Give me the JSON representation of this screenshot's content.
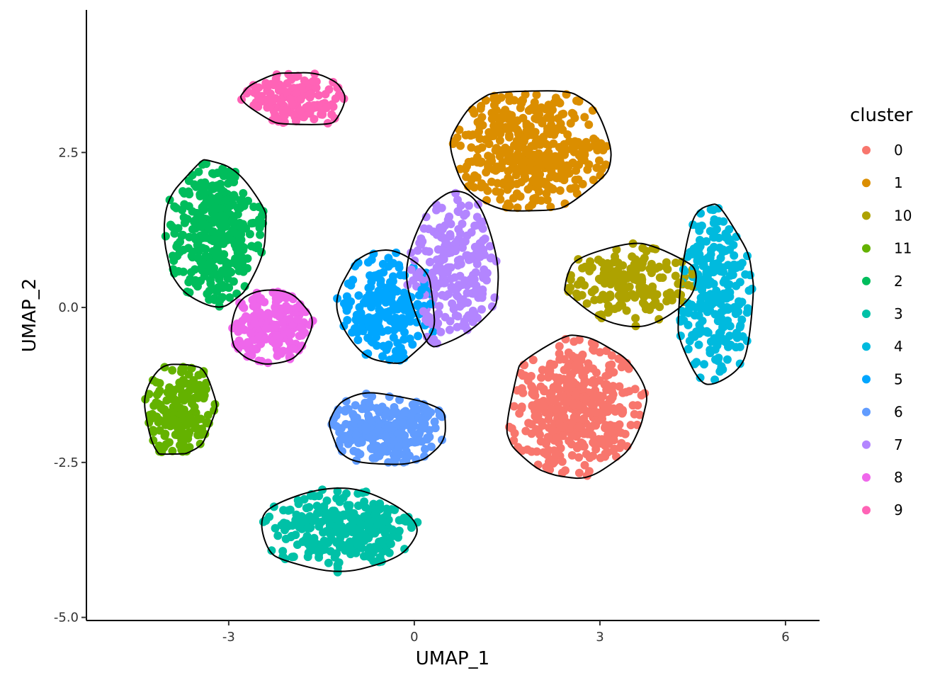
{
  "chart_data": {
    "type": "scatter",
    "title": "",
    "xlabel": "UMAP_1",
    "ylabel": "UMAP_2",
    "xlim": [
      -5.3,
      6.55
    ],
    "ylim": [
      -5.05,
      4.8
    ],
    "x_ticks": [
      -3,
      0,
      3,
      6
    ],
    "x_tick_labels": [
      "-3",
      "0",
      "3",
      "6"
    ],
    "y_ticks": [
      -5.0,
      -2.5,
      0.0,
      2.5
    ],
    "y_tick_labels": [
      "-5.0",
      "-2.5",
      "0.0",
      "2.5"
    ],
    "grid": false,
    "legend": {
      "title": "cluster",
      "placement": "right"
    },
    "series": [
      {
        "name": "0",
        "color": "#F8766D",
        "center": [
          2.6,
          -1.6
        ],
        "spread": [
          1.15,
          1.15
        ],
        "count": 420
      },
      {
        "name": "1",
        "color": "#DB8E00",
        "center": [
          1.9,
          2.55
        ],
        "spread": [
          1.3,
          1.0
        ],
        "count": 400
      },
      {
        "name": "10",
        "color": "#AEA200",
        "center": [
          3.5,
          0.35
        ],
        "spread": [
          1.1,
          0.7
        ],
        "count": 170
      },
      {
        "name": "11",
        "color": "#64B200",
        "center": [
          -3.8,
          -1.65
        ],
        "spread": [
          0.6,
          0.85
        ],
        "count": 180
      },
      {
        "name": "2",
        "color": "#00BD5C",
        "center": [
          -3.2,
          1.2
        ],
        "spread": [
          0.85,
          1.2
        ],
        "count": 330
      },
      {
        "name": "3",
        "color": "#00C1A7",
        "center": [
          -1.2,
          -3.6
        ],
        "spread": [
          1.3,
          0.7
        ],
        "count": 280
      },
      {
        "name": "4",
        "color": "#00BADE",
        "center": [
          4.85,
          0.2
        ],
        "spread": [
          0.65,
          1.45
        ],
        "count": 250
      },
      {
        "name": "5",
        "color": "#00A6FF",
        "center": [
          -0.45,
          0.0
        ],
        "spread": [
          0.85,
          0.9
        ],
        "count": 200
      },
      {
        "name": "6",
        "color": "#619CFF",
        "center": [
          -0.45,
          -1.95
        ],
        "spread": [
          1.0,
          0.6
        ],
        "count": 250
      },
      {
        "name": "7",
        "color": "#B385FF",
        "center": [
          0.6,
          0.6
        ],
        "spread": [
          0.75,
          1.3
        ],
        "count": 230
      },
      {
        "name": "8",
        "color": "#EF67EB",
        "center": [
          -2.3,
          -0.3
        ],
        "spread": [
          0.7,
          0.6
        ],
        "count": 180
      },
      {
        "name": "9",
        "color": "#FF63B6",
        "center": [
          -1.9,
          3.35
        ],
        "spread": [
          0.95,
          0.45
        ],
        "count": 150
      }
    ]
  }
}
